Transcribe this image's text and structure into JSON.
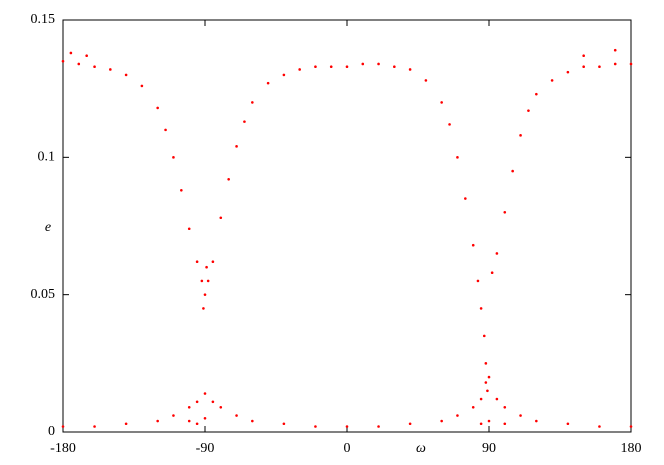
{
  "chart_data": {
    "type": "scatter",
    "x_label": "ω",
    "y_label": "e",
    "color": "#ff0000",
    "xlim": [
      -180,
      180
    ],
    "xticks": [
      -180,
      -90,
      0,
      90,
      180
    ],
    "ylim": [
      0,
      0.15
    ],
    "yticks": [
      0,
      0.05,
      0.1,
      0.15
    ],
    "x": [
      -180,
      -175,
      -170,
      -165,
      -160,
      -150,
      -140,
      -130,
      -120,
      -115,
      -110,
      -105,
      -100,
      -95,
      -92,
      -91,
      -90,
      -89,
      -88,
      -85,
      -80,
      -75,
      -70,
      -65,
      -60,
      -50,
      -40,
      -30,
      -20,
      -10,
      0,
      10,
      20,
      30,
      40,
      50,
      60,
      65,
      70,
      75,
      80,
      83,
      85,
      87,
      88,
      89,
      92,
      95,
      100,
      105,
      110,
      115,
      120,
      130,
      140,
      150,
      150,
      160,
      170,
      170,
      180,
      -180,
      -160,
      -140,
      -120,
      -110,
      -100,
      -100,
      -95,
      -95,
      -90,
      -90,
      -85,
      -80,
      -70,
      -60,
      -40,
      -20,
      0,
      20,
      40,
      60,
      70,
      80,
      85,
      85,
      88,
      90,
      90,
      95,
      100,
      100,
      110,
      120,
      140,
      160,
      180
    ],
    "values": [
      0.135,
      0.138,
      0.134,
      0.137,
      0.133,
      0.132,
      0.13,
      0.126,
      0.118,
      0.11,
      0.1,
      0.088,
      0.074,
      0.062,
      0.055,
      0.045,
      0.05,
      0.06,
      0.055,
      0.062,
      0.078,
      0.092,
      0.104,
      0.113,
      0.12,
      0.127,
      0.13,
      0.132,
      0.133,
      0.133,
      0.133,
      0.134,
      0.134,
      0.133,
      0.132,
      0.128,
      0.12,
      0.112,
      0.1,
      0.085,
      0.068,
      0.055,
      0.045,
      0.035,
      0.025,
      0.015,
      0.058,
      0.065,
      0.08,
      0.095,
      0.108,
      0.117,
      0.123,
      0.128,
      0.131,
      0.133,
      0.137,
      0.133,
      0.134,
      0.139,
      0.134,
      0.002,
      0.002,
      0.003,
      0.004,
      0.006,
      0.009,
      0.004,
      0.011,
      0.003,
      0.014,
      0.005,
      0.011,
      0.009,
      0.006,
      0.004,
      0.003,
      0.002,
      0.002,
      0.002,
      0.003,
      0.004,
      0.006,
      0.009,
      0.012,
      0.003,
      0.018,
      0.02,
      0.004,
      0.012,
      0.009,
      0.003,
      0.006,
      0.004,
      0.003,
      0.002,
      0.002
    ]
  }
}
